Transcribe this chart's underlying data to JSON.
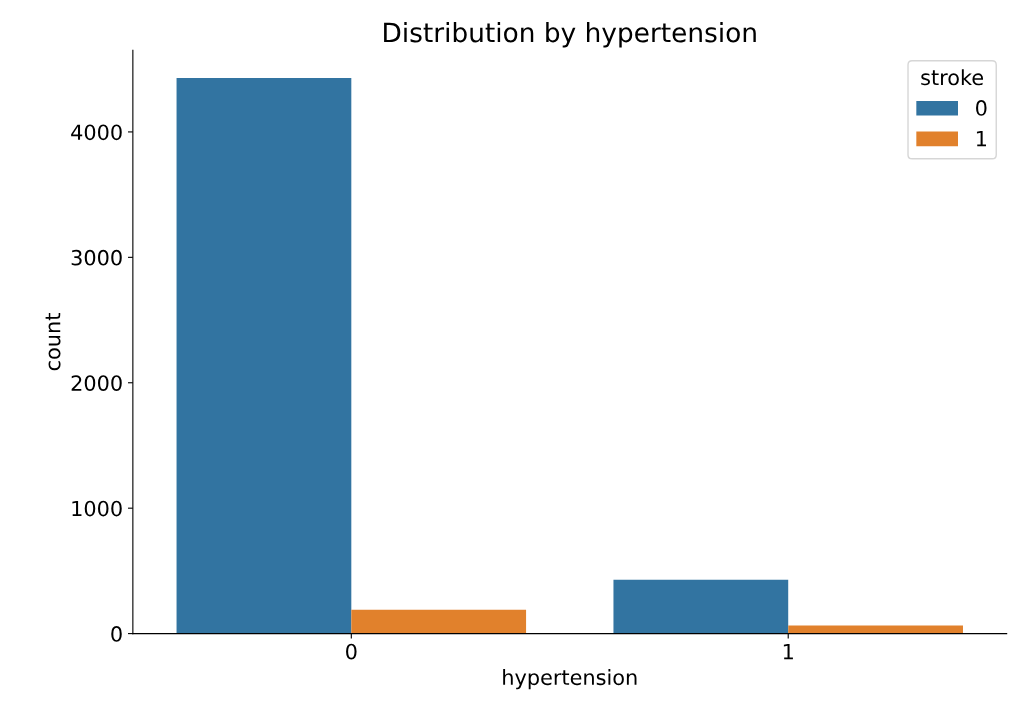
{
  "chart_data": {
    "type": "bar",
    "title": "Distribution by hypertension",
    "xlabel": "hypertension",
    "ylabel": "count",
    "categories": [
      "0",
      "1"
    ],
    "series": [
      {
        "name": "0",
        "color": "#3274a1",
        "values": [
          4430,
          430
        ]
      },
      {
        "name": "1",
        "color": "#e1812c",
        "values": [
          190,
          65
        ]
      }
    ],
    "legend_title": "stroke",
    "legend": "top right",
    "grid": false,
    "ylim": [
      0,
      4650
    ],
    "yticks": [
      0,
      1000,
      2000,
      3000,
      4000
    ]
  }
}
